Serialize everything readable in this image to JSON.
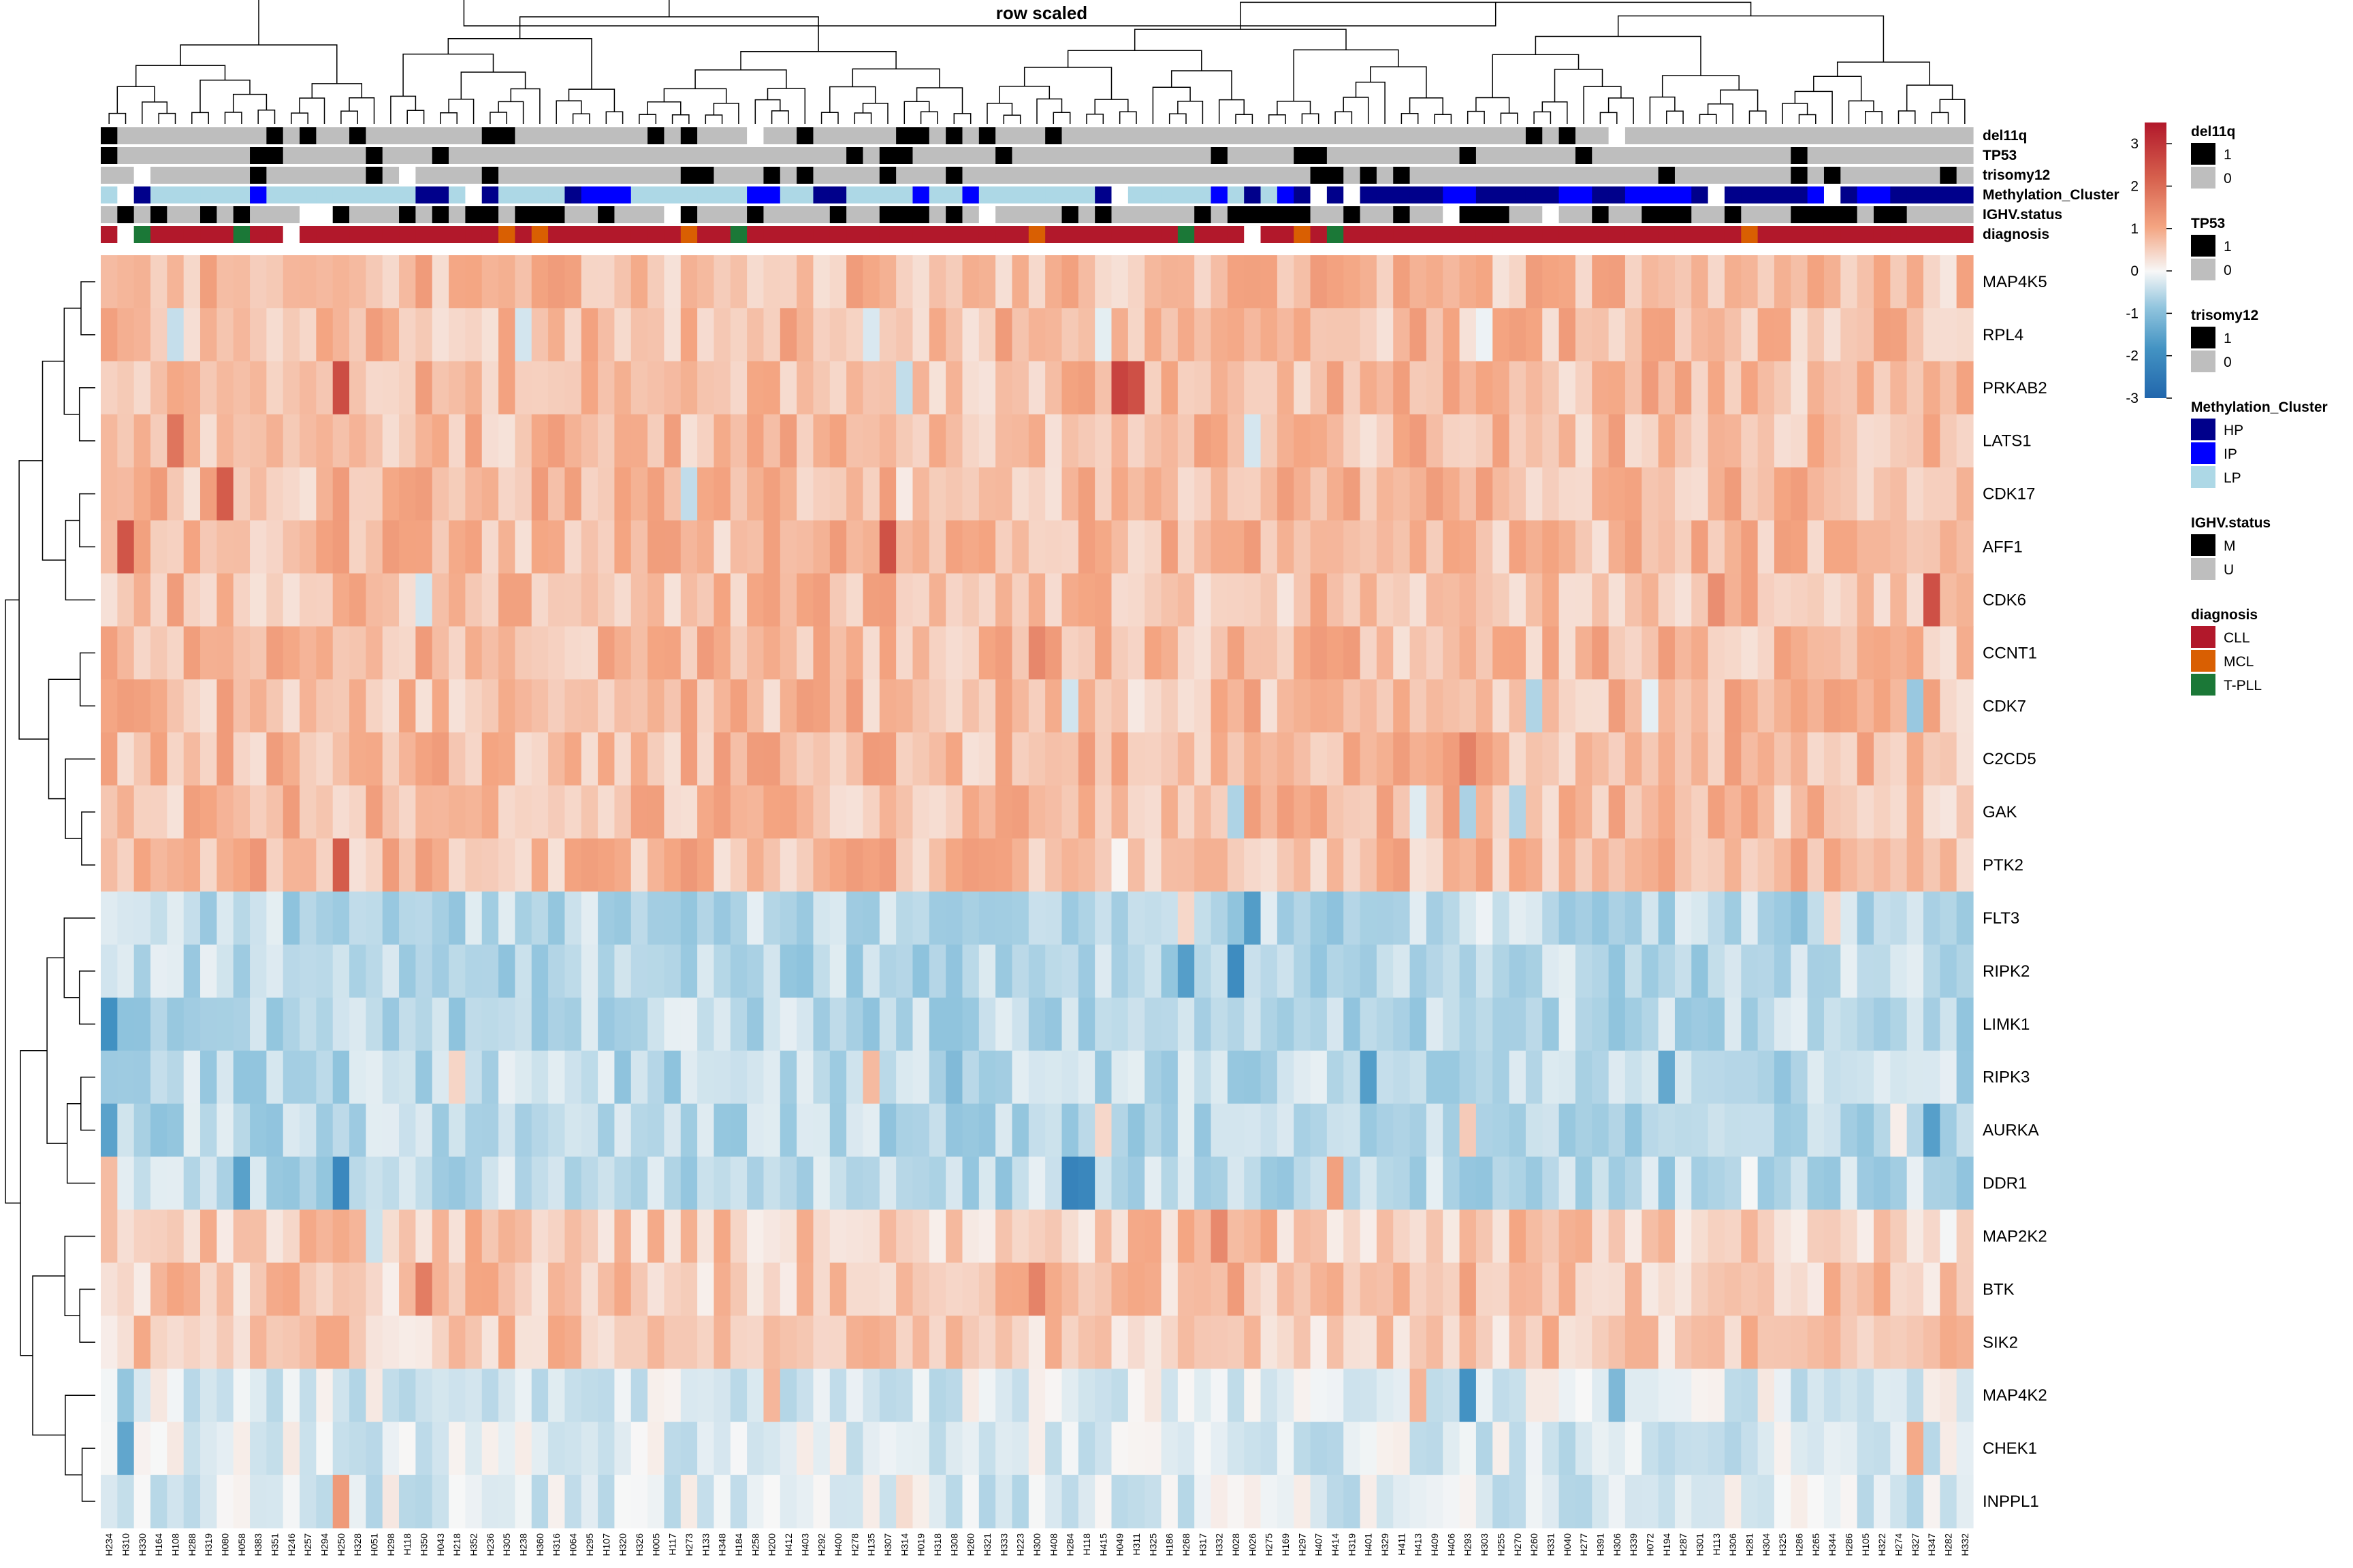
{
  "chart_data": {
    "type": "heatmap",
    "title": "row scaled",
    "rows": [
      "MAP4K5",
      "RPL4",
      "PRKAB2",
      "LATS1",
      "CDK17",
      "AFF1",
      "CDK6",
      "CCNT1",
      "CDK7",
      "C2CD5",
      "GAK",
      "PTK2",
      "FLT3",
      "RIPK2",
      "LIMK1",
      "RIPK3",
      "AURKA",
      "DDR1",
      "MAP2K2",
      "BTK",
      "SIK2",
      "MAP4K2",
      "CHEK1",
      "INPPL1"
    ],
    "row_clusters": [
      {
        "rows": [
          "MAP4K5",
          "RPL4",
          "PRKAB2",
          "LATS1",
          "CDK17",
          "AFF1",
          "CDK6",
          "CCNT1",
          "CDK7",
          "C2CD5",
          "GAK",
          "PTK2"
        ],
        "mean": 0.7
      },
      {
        "rows": [
          "FLT3",
          "RIPK2",
          "LIMK1",
          "RIPK3",
          "AURKA",
          "DDR1"
        ],
        "mean": -0.6
      },
      {
        "rows": [
          "MAP2K2",
          "BTK",
          "SIK2"
        ],
        "mean": 0.55
      },
      {
        "rows": [
          "MAP4K2",
          "CHEK1",
          "INPPL1"
        ],
        "mean": -0.25
      }
    ],
    "columns": [
      "H234",
      "H310",
      "H330",
      "H164",
      "H108",
      "H288",
      "H319",
      "H080",
      "H058",
      "H383",
      "H351",
      "H246",
      "H257",
      "H294",
      "H250",
      "H328",
      "H051",
      "H298",
      "H118",
      "H350",
      "H043",
      "H218",
      "H352",
      "H236",
      "H305",
      "H238",
      "H360",
      "H316",
      "H064",
      "H295",
      "H107",
      "H320",
      "H326",
      "H005",
      "H117",
      "H273",
      "H133",
      "H348",
      "H184",
      "H258",
      "H200",
      "H412",
      "H403",
      "H292",
      "H400",
      "H278",
      "H135",
      "H307",
      "H314",
      "H019",
      "H318",
      "H308",
      "H260",
      "H321",
      "H333",
      "H223",
      "H300",
      "H408",
      "H284",
      "H118",
      "H415",
      "H049",
      "H311",
      "H325",
      "H186",
      "H268",
      "H317",
      "H332",
      "H028",
      "H026",
      "H275",
      "H169",
      "H297",
      "H407",
      "H414",
      "H319",
      "H401",
      "H329",
      "H411",
      "H413",
      "H409",
      "H406",
      "H293",
      "H303",
      "H255",
      "H270",
      "H260",
      "H331",
      "H040",
      "H277",
      "H391",
      "H306",
      "H339",
      "H072",
      "H194",
      "H287",
      "H301",
      "H113",
      "H306",
      "H281",
      "H304",
      "H325",
      "H286",
      "H265",
      "H344",
      "H286",
      "H105",
      "H322",
      "H274",
      "H327",
      "H347",
      "H282",
      "H332"
    ],
    "scale": {
      "min": -3,
      "max": 3.5,
      "ticks": [
        3,
        2,
        1,
        0,
        -1,
        -2,
        -3
      ]
    },
    "colors": {
      "low": "#2166ac",
      "mid": "#f7f7f7",
      "high": "#b2182b"
    },
    "annotations": [
      {
        "name": "del11q",
        "levels": [
          "1",
          "0"
        ]
      },
      {
        "name": "TP53",
        "levels": [
          "1",
          "0"
        ]
      },
      {
        "name": "trisomy12",
        "levels": [
          "1",
          "0"
        ]
      },
      {
        "name": "Methylation_Cluster",
        "levels": [
          "HP",
          "IP",
          "LP"
        ]
      },
      {
        "name": "IGHV.status",
        "levels": [
          "M",
          "U"
        ]
      },
      {
        "name": "diagnosis",
        "levels": [
          "CLL",
          "MCL",
          "T-PLL"
        ]
      }
    ],
    "legend_placement": "right",
    "legend": [
      {
        "title": "del11q",
        "items": [
          {
            "label": "1",
            "color": "#000000"
          },
          {
            "label": "0",
            "color": "#bebebe"
          }
        ]
      },
      {
        "title": "TP53",
        "items": [
          {
            "label": "1",
            "color": "#000000"
          },
          {
            "label": "0",
            "color": "#bebebe"
          }
        ]
      },
      {
        "title": "trisomy12",
        "items": [
          {
            "label": "1",
            "color": "#000000"
          },
          {
            "label": "0",
            "color": "#bebebe"
          }
        ]
      },
      {
        "title": "Methylation_Cluster",
        "items": [
          {
            "label": "HP",
            "color": "#00008b"
          },
          {
            "label": "IP",
            "color": "#0000ff"
          },
          {
            "label": "LP",
            "color": "#add8e6"
          }
        ]
      },
      {
        "title": "IGHV.status",
        "items": [
          {
            "label": "M",
            "color": "#000000"
          },
          {
            "label": "U",
            "color": "#bebebe"
          }
        ]
      },
      {
        "title": "diagnosis",
        "items": [
          {
            "label": "CLL",
            "color": "#b2182b"
          },
          {
            "label": "MCL",
            "color": "#d95f02"
          },
          {
            "label": "T-PLL",
            "color": "#1b7837"
          }
        ]
      }
    ]
  }
}
